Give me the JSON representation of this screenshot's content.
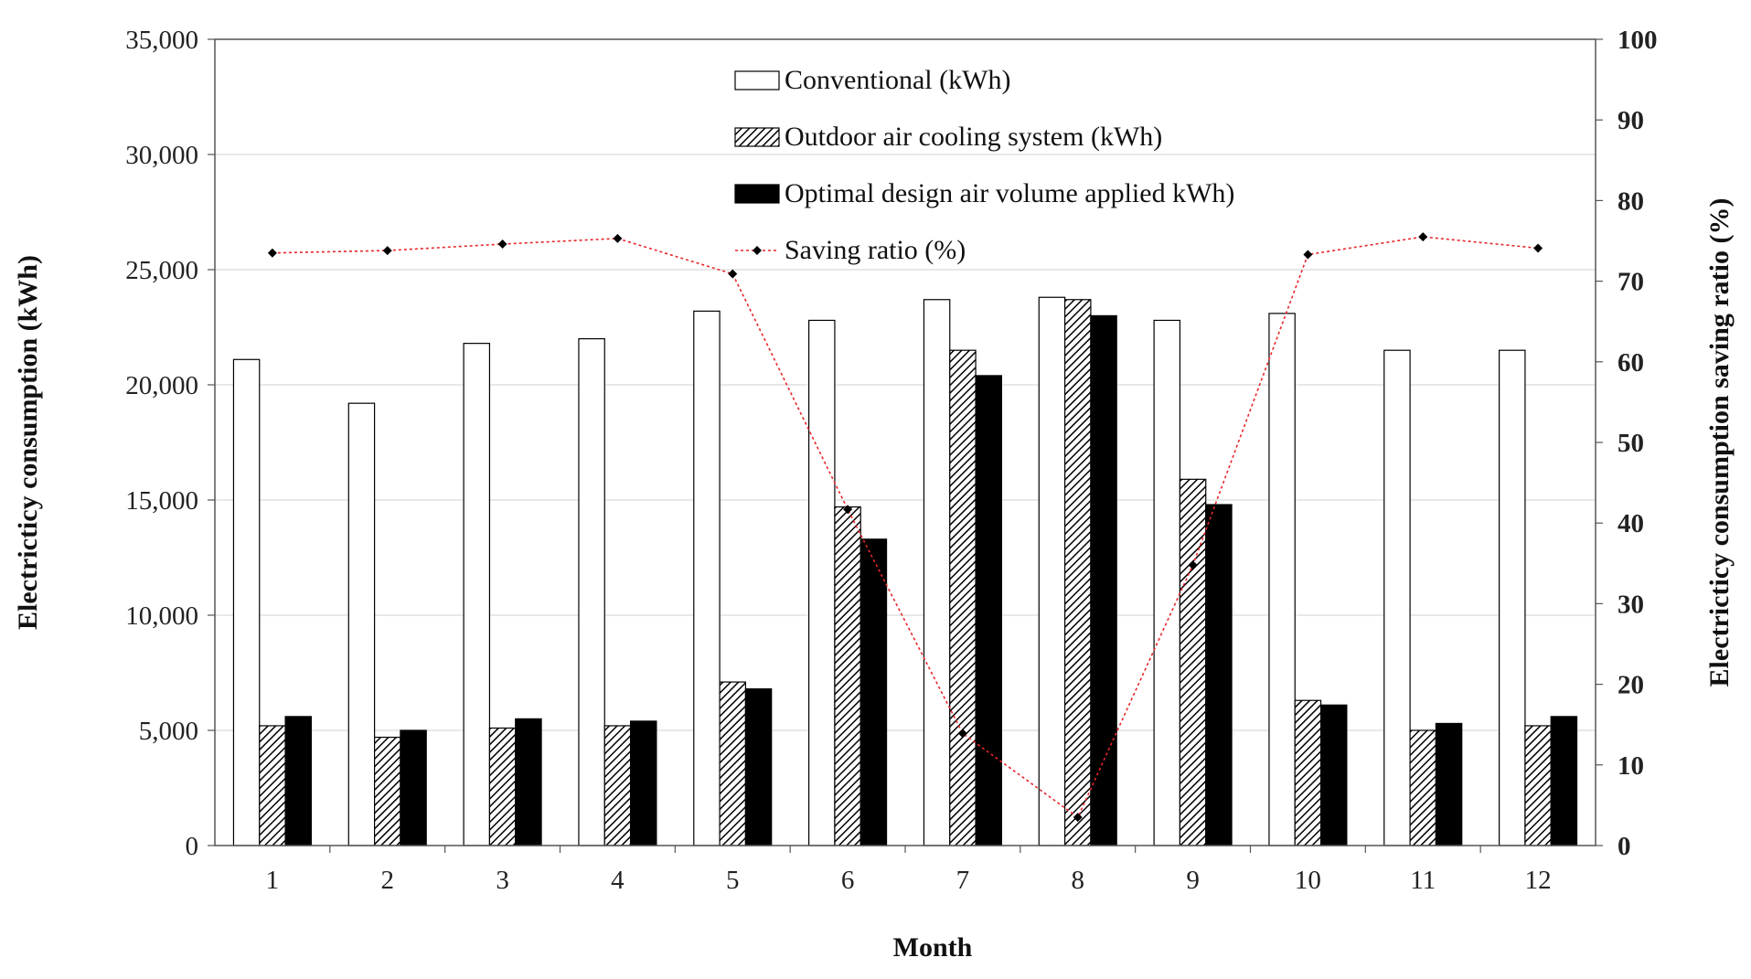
{
  "chart_data": {
    "type": "bar",
    "categories": [
      "1",
      "2",
      "3",
      "4",
      "5",
      "6",
      "7",
      "8",
      "9",
      "10",
      "11",
      "12"
    ],
    "series": [
      {
        "name": "Conventional (kWh)",
        "axis": "left",
        "style": "white",
        "values": [
          21100,
          19200,
          21800,
          22000,
          23200,
          22800,
          23700,
          23800,
          22800,
          23100,
          21500,
          21500
        ]
      },
      {
        "name": "Outdoor air cooling system (kWh)",
        "axis": "left",
        "style": "hatched",
        "values": [
          5200,
          4700,
          5100,
          5200,
          7100,
          14700,
          21500,
          23700,
          15900,
          6300,
          5000,
          5200
        ]
      },
      {
        "name": "Optimal design air volume applied kWh)",
        "axis": "left",
        "style": "black",
        "values": [
          5600,
          5000,
          5500,
          5400,
          6800,
          13300,
          20400,
          23000,
          14800,
          6100,
          5300,
          5600
        ]
      },
      {
        "name": "Saving ratio (%)",
        "axis": "right",
        "type": "line",
        "color": "#e8262b",
        "values": [
          73.5,
          73.8,
          74.6,
          75.3,
          70.9,
          41.7,
          13.9,
          3.5,
          34.8,
          73.3,
          75.5,
          74.1
        ]
      }
    ],
    "legend": [
      "Conventional (kWh)",
      "Outdoor air cooling system (kWh)",
      "Optimal design air volume applied kWh)",
      "Saving ratio (%)"
    ],
    "legend_position": "top-center",
    "xlabel": "Month",
    "ylabel": "Electricticy consumption (kWh)",
    "y2label": "Electricticy consumption saving ratio (%)",
    "ylim": [
      0,
      35000
    ],
    "y2lim": [
      0,
      100
    ],
    "yticks": [
      0,
      5000,
      10000,
      15000,
      20000,
      25000,
      30000,
      35000
    ],
    "ytick_labels": [
      "0",
      "5,000",
      "10,000",
      "15,000",
      "20,000",
      "25,000",
      "30,000",
      "35,000"
    ],
    "y2ticks": [
      0,
      10,
      20,
      30,
      40,
      50,
      60,
      70,
      80,
      90,
      100
    ],
    "y2tick_labels": [
      "0",
      "10",
      "20",
      "30",
      "40",
      "50",
      "60",
      "70",
      "80",
      "90",
      "100"
    ],
    "grid": true
  }
}
